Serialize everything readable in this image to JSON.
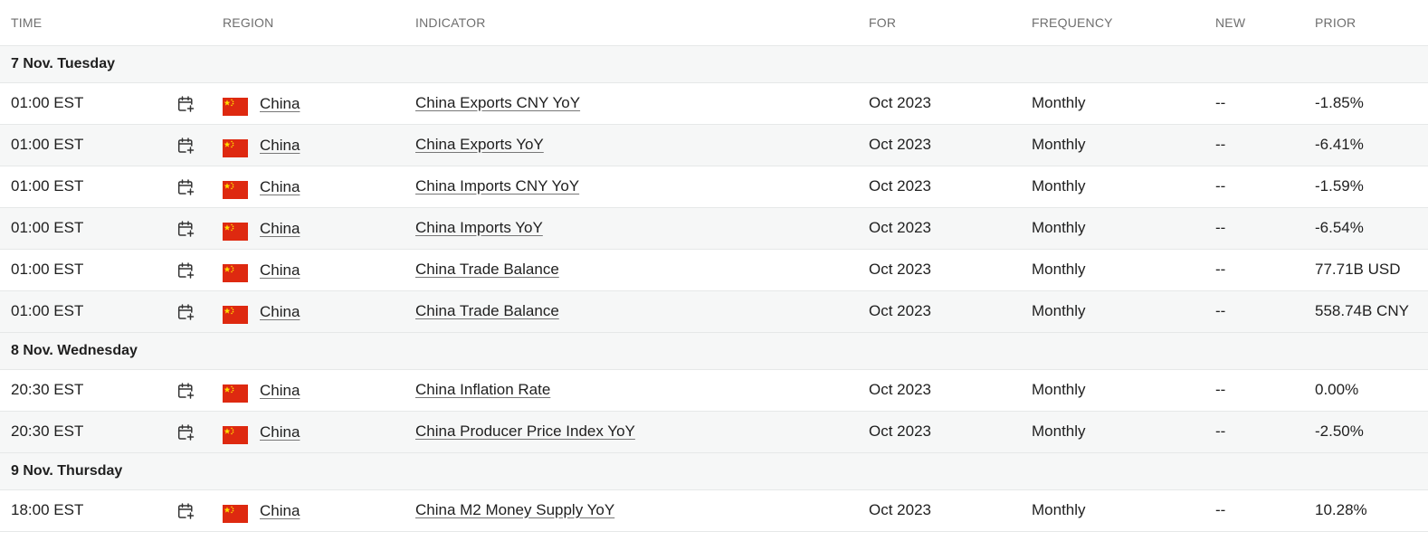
{
  "columns": {
    "time": "TIME",
    "region": "REGION",
    "indicator": "INDICATOR",
    "for": "FOR",
    "frequency": "FREQUENCY",
    "new": "NEW",
    "prior": "PRIOR"
  },
  "colors": {
    "flag_red": "#de2910",
    "flag_yellow": "#ffde00",
    "alt_row": "#f6f7f7",
    "border": "#e6e8e8"
  },
  "icons": {
    "add_to_calendar": "calendar-plus-icon",
    "region_flag": "china-flag-icon"
  },
  "sections": [
    {
      "date": "7 Nov. Tuesday",
      "events": [
        {
          "time": "01:00 EST",
          "region": "China",
          "indicator": "China Exports CNY YoY",
          "for": "Oct 2023",
          "frequency": "Monthly",
          "new": "--",
          "prior": "-1.85%"
        },
        {
          "time": "01:00 EST",
          "region": "China",
          "indicator": "China Exports YoY",
          "for": "Oct 2023",
          "frequency": "Monthly",
          "new": "--",
          "prior": "-6.41%"
        },
        {
          "time": "01:00 EST",
          "region": "China",
          "indicator": "China Imports CNY YoY",
          "for": "Oct 2023",
          "frequency": "Monthly",
          "new": "--",
          "prior": "-1.59%"
        },
        {
          "time": "01:00 EST",
          "region": "China",
          "indicator": "China Imports YoY",
          "for": "Oct 2023",
          "frequency": "Monthly",
          "new": "--",
          "prior": "-6.54%"
        },
        {
          "time": "01:00 EST",
          "region": "China",
          "indicator": "China Trade Balance",
          "for": "Oct 2023",
          "frequency": "Monthly",
          "new": "--",
          "prior": "77.71B USD"
        },
        {
          "time": "01:00 EST",
          "region": "China",
          "indicator": "China Trade Balance",
          "for": "Oct 2023",
          "frequency": "Monthly",
          "new": "--",
          "prior": "558.74B CNY"
        }
      ]
    },
    {
      "date": "8 Nov. Wednesday",
      "events": [
        {
          "time": "20:30 EST",
          "region": "China",
          "indicator": "China Inflation Rate",
          "for": "Oct 2023",
          "frequency": "Monthly",
          "new": "--",
          "prior": "0.00%"
        },
        {
          "time": "20:30 EST",
          "region": "China",
          "indicator": "China Producer Price Index YoY",
          "for": "Oct 2023",
          "frequency": "Monthly",
          "new": "--",
          "prior": "-2.50%"
        }
      ]
    },
    {
      "date": "9 Nov. Thursday",
      "events": [
        {
          "time": "18:00 EST",
          "region": "China",
          "indicator": "China M2 Money Supply YoY",
          "for": "Oct 2023",
          "frequency": "Monthly",
          "new": "--",
          "prior": "10.28%"
        }
      ]
    }
  ]
}
